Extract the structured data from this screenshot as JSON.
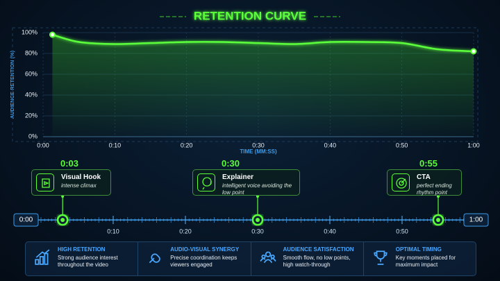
{
  "chart_data": {
    "type": "line",
    "title": "RETENTION CURVE",
    "x_label": "TIME (MM:SS)",
    "y_label": "AUDIENCE RETENTION (%)",
    "x": [
      1.3,
      5,
      10,
      15,
      20,
      25,
      30,
      35,
      40,
      45,
      50,
      55,
      60
    ],
    "series": [
      {
        "name": "Retention",
        "color": "#5cff3a",
        "values": [
          98,
          91,
          89,
          90,
          91,
          91,
          90,
          89,
          91,
          91,
          90,
          84,
          82
        ]
      }
    ],
    "xlim": [
      0,
      60
    ],
    "xticks": [
      {
        "value": 0,
        "label": "0:00"
      },
      {
        "value": 10,
        "label": "0:10"
      },
      {
        "value": 20,
        "label": "0:20"
      },
      {
        "value": 30,
        "label": "0:30"
      },
      {
        "value": 40,
        "label": "0:40"
      },
      {
        "value": 50,
        "label": "0:50"
      },
      {
        "value": 60,
        "label": "1:00"
      }
    ],
    "ylim": [
      0,
      100
    ],
    "yticks": [
      {
        "value": 0,
        "label": "0%"
      },
      {
        "value": 20,
        "label": "20%"
      },
      {
        "value": 40,
        "label": "40%"
      },
      {
        "value": 60,
        "label": "60%"
      },
      {
        "value": 80,
        "label": "80%"
      },
      {
        "value": 100,
        "label": "100%"
      }
    ],
    "grid": true
  },
  "timeline": {
    "xlim": [
      0,
      60
    ],
    "start": {
      "value": 0,
      "label": "0:00"
    },
    "end": {
      "value": 60,
      "label": "1:00"
    },
    "ticks": [
      {
        "value": 10,
        "label": "0:10"
      },
      {
        "value": 20,
        "label": "0:20"
      },
      {
        "value": 30,
        "label": "0:30"
      },
      {
        "value": 40,
        "label": "0:40"
      },
      {
        "value": 50,
        "label": "0:50"
      }
    ],
    "markers": [
      {
        "time": {
          "value": 3,
          "label": "0:03"
        },
        "title": "Visual Hook",
        "subtitle": "intense climax"
      },
      {
        "time": {
          "value": 30,
          "label": "0:30"
        },
        "title": "Explainer",
        "subtitle": "intelligent voice avoiding the low point"
      },
      {
        "time": {
          "value": 55,
          "label": "0:55"
        },
        "title": "CTA",
        "subtitle": "perfect ending rhythm point"
      }
    ]
  },
  "features": [
    {
      "title": "HIGH RETENTION",
      "text": "Strong audience interest throughout the video"
    },
    {
      "title": "AUDIO-VISUAL SYNERGY",
      "text": "Precise coordination keeps viewers engaged"
    },
    {
      "title": "AUDIENCE SATISFACTION",
      "text": "Smooth flow, no low points, high watch-through"
    },
    {
      "title": "OPTIMAL TIMING",
      "text": "Key moments placed for maximum impact"
    }
  ]
}
